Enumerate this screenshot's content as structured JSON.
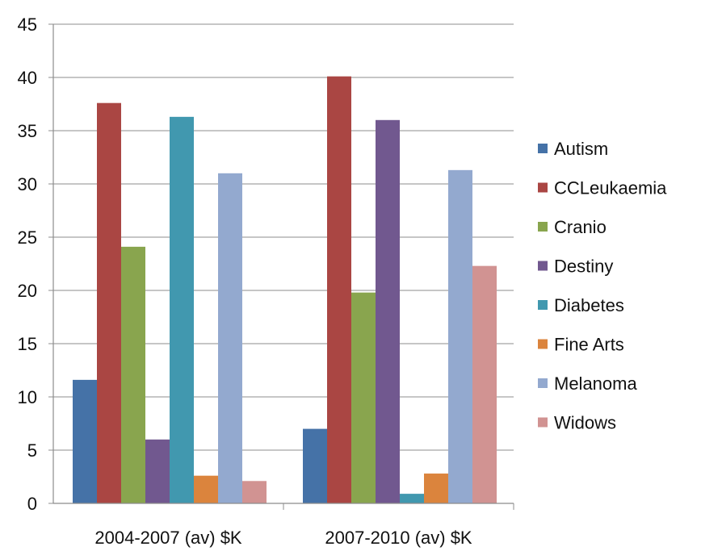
{
  "chart_data": {
    "type": "bar",
    "categories": [
      "2004-2007 (av) $K",
      "2007-2010 (av) $K"
    ],
    "ylim": [
      0,
      45
    ],
    "yticks": [
      0,
      5,
      10,
      15,
      20,
      25,
      30,
      35,
      40,
      45
    ],
    "grid": true,
    "legend_position": "right",
    "series": [
      {
        "name": "Autism",
        "color": "#4572A7",
        "values": [
          11.6,
          7.0
        ]
      },
      {
        "name": "CCLeukaemia",
        "color": "#AA4643",
        "values": [
          37.6,
          40.1
        ]
      },
      {
        "name": "Cranio",
        "color": "#89A54E",
        "values": [
          24.1,
          19.8
        ]
      },
      {
        "name": "Destiny",
        "color": "#71588F",
        "values": [
          6.0,
          36.0
        ]
      },
      {
        "name": "Diabetes",
        "color": "#4198AF",
        "values": [
          36.3,
          0.9
        ]
      },
      {
        "name": "Fine Arts",
        "color": "#DB843D",
        "values": [
          2.6,
          2.8
        ]
      },
      {
        "name": "Melanoma",
        "color": "#93A9CF",
        "values": [
          31.0,
          31.3
        ]
      },
      {
        "name": "Widows",
        "color": "#D19392",
        "values": [
          2.1,
          22.3
        ]
      }
    ]
  }
}
